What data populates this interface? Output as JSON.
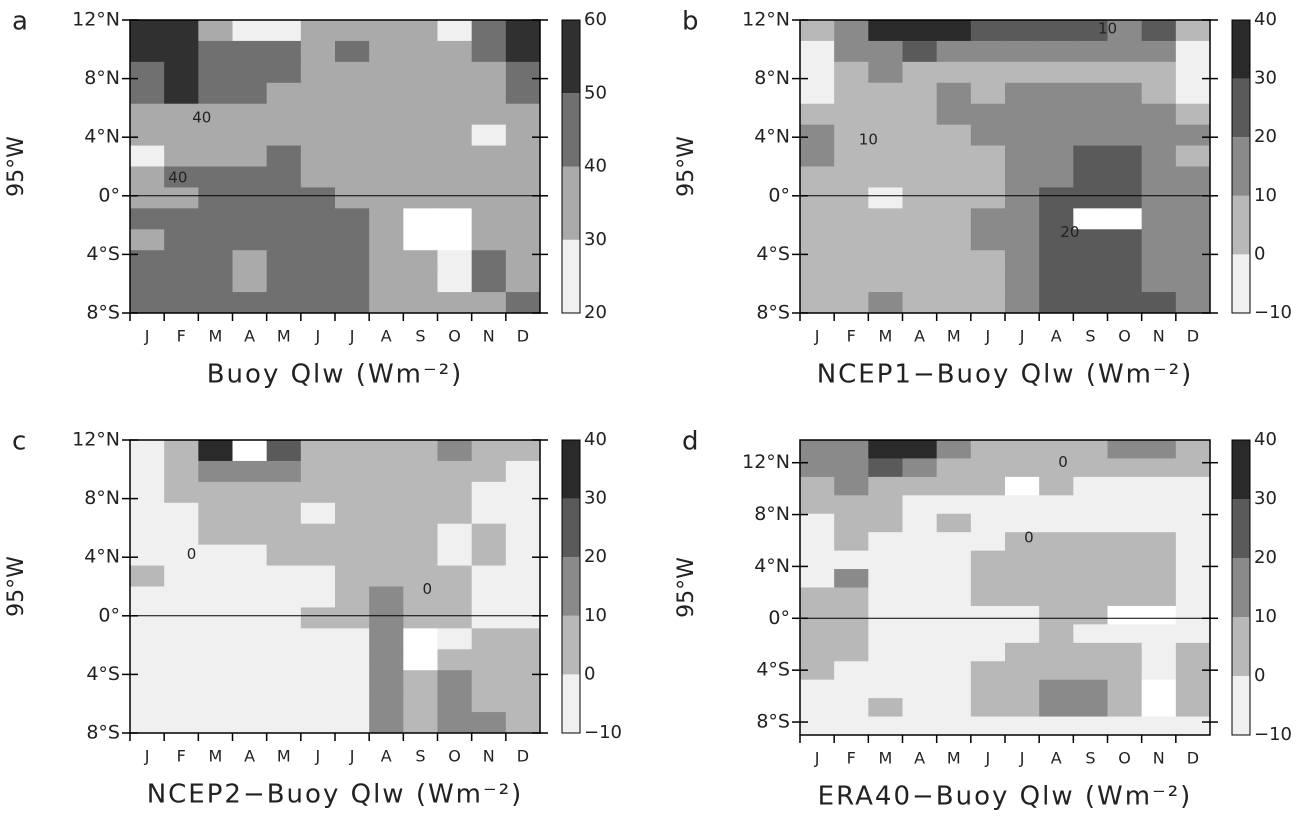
{
  "chart_data": [
    {
      "type": "heatmap",
      "panel_label": "a",
      "ylabel": "95°W",
      "xlabel": "Buoy Qlw (Wm⁻²)",
      "categories": [
        "J",
        "F",
        "M",
        "A",
        "M",
        "J",
        "J",
        "A",
        "S",
        "O",
        "N",
        "D"
      ],
      "ylim": [
        -8,
        12
      ],
      "yticks": [
        {
          "value": 12,
          "label": "12°N"
        },
        {
          "value": 8,
          "label": "8°N"
        },
        {
          "value": 4,
          "label": "4°N"
        },
        {
          "value": 0,
          "label": "0°"
        },
        {
          "value": -4,
          "label": "4°S"
        },
        {
          "value": -8,
          "label": "8°S"
        }
      ],
      "levels": [
        20,
        30,
        40,
        50,
        60
      ],
      "colors": [
        "#f0f0f0",
        "#aaaaaa",
        "#707070",
        "#303030"
      ],
      "below_color": "#ffffff",
      "rows": [
        [
          55,
          55,
          35,
          25,
          25,
          35,
          35,
          35,
          35,
          25,
          45,
          55
        ],
        [
          55,
          55,
          45,
          45,
          45,
          35,
          45,
          35,
          35,
          35,
          45,
          55
        ],
        [
          45,
          55,
          45,
          45,
          45,
          35,
          35,
          35,
          35,
          35,
          35,
          45
        ],
        [
          45,
          55,
          45,
          45,
          35,
          35,
          35,
          35,
          35,
          35,
          35,
          45
        ],
        [
          35,
          35,
          35,
          35,
          35,
          35,
          35,
          35,
          35,
          35,
          35,
          35
        ],
        [
          35,
          35,
          35,
          35,
          35,
          35,
          35,
          35,
          35,
          35,
          25,
          35
        ],
        [
          25,
          35,
          35,
          35,
          45,
          35,
          35,
          35,
          35,
          35,
          35,
          35
        ],
        [
          35,
          45,
          45,
          45,
          45,
          35,
          35,
          35,
          35,
          35,
          35,
          35
        ],
        [
          35,
          35,
          45,
          45,
          45,
          45,
          35,
          35,
          35,
          35,
          35,
          35
        ],
        [
          45,
          45,
          45,
          45,
          45,
          45,
          45,
          35,
          15,
          15,
          35,
          35
        ],
        [
          35,
          45,
          45,
          45,
          45,
          45,
          45,
          35,
          15,
          15,
          35,
          35
        ],
        [
          45,
          45,
          45,
          35,
          45,
          45,
          45,
          35,
          35,
          25,
          45,
          35
        ],
        [
          45,
          45,
          45,
          35,
          45,
          45,
          45,
          35,
          35,
          25,
          45,
          35
        ],
        [
          45,
          45,
          45,
          45,
          45,
          45,
          45,
          35,
          35,
          35,
          35,
          45
        ]
      ],
      "annotations": [
        {
          "text": "40",
          "x": 1.6,
          "y": 5.3
        },
        {
          "text": "40",
          "x": 0.9,
          "y": 1.2
        }
      ]
    },
    {
      "type": "heatmap",
      "panel_label": "b",
      "ylabel": "95°W",
      "xlabel": "NCEP1−Buoy Qlw (Wm⁻²)",
      "categories": [
        "J",
        "F",
        "M",
        "A",
        "M",
        "J",
        "J",
        "A",
        "S",
        "O",
        "N",
        "D"
      ],
      "ylim": [
        -8,
        12
      ],
      "yticks": [
        {
          "value": 12,
          "label": "12°N"
        },
        {
          "value": 8,
          "label": "8°N"
        },
        {
          "value": 4,
          "label": "4°N"
        },
        {
          "value": 0,
          "label": "0°"
        },
        {
          "value": -4,
          "label": "4°S"
        },
        {
          "value": -8,
          "label": "8°S"
        }
      ],
      "levels": [
        {
          "value": -10,
          "label": "−10"
        },
        0,
        10,
        20,
        30,
        40
      ],
      "colors": [
        "#f0f0f0",
        "#b8b8b8",
        "#8a8a8a",
        "#5a5a5a",
        "#2a2a2a"
      ],
      "below_color": "#ffffff",
      "rows": [
        [
          5,
          15,
          35,
          35,
          35,
          25,
          25,
          25,
          25,
          15,
          25,
          5
        ],
        [
          -5,
          15,
          15,
          25,
          15,
          15,
          15,
          15,
          15,
          15,
          15,
          -5
        ],
        [
          -5,
          5,
          15,
          5,
          5,
          5,
          5,
          5,
          5,
          5,
          5,
          -5
        ],
        [
          -5,
          5,
          5,
          5,
          15,
          5,
          15,
          15,
          15,
          15,
          5,
          -5
        ],
        [
          5,
          5,
          5,
          5,
          15,
          15,
          15,
          15,
          15,
          15,
          15,
          5
        ],
        [
          15,
          5,
          5,
          5,
          5,
          15,
          15,
          15,
          15,
          15,
          15,
          15
        ],
        [
          15,
          5,
          5,
          5,
          5,
          5,
          15,
          15,
          25,
          25,
          15,
          5
        ],
        [
          5,
          5,
          5,
          5,
          5,
          5,
          15,
          15,
          25,
          25,
          15,
          15
        ],
        [
          5,
          5,
          -5,
          5,
          5,
          5,
          15,
          25,
          25,
          25,
          15,
          15
        ],
        [
          5,
          5,
          5,
          5,
          5,
          15,
          15,
          25,
          -15,
          -15,
          15,
          15
        ],
        [
          5,
          5,
          5,
          5,
          5,
          15,
          15,
          25,
          25,
          25,
          15,
          15
        ],
        [
          5,
          5,
          5,
          5,
          5,
          5,
          15,
          25,
          25,
          25,
          15,
          15
        ],
        [
          5,
          5,
          5,
          5,
          5,
          5,
          15,
          25,
          25,
          25,
          15,
          15
        ],
        [
          5,
          5,
          15,
          5,
          5,
          5,
          15,
          25,
          25,
          25,
          25,
          15
        ]
      ],
      "annotations": [
        {
          "text": "10",
          "x": 8.5,
          "y": 11.4
        },
        {
          "text": "10",
          "x": 1.5,
          "y": 3.8
        },
        {
          "text": "20",
          "x": 7.4,
          "y": -2.5
        }
      ]
    },
    {
      "type": "heatmap",
      "panel_label": "c",
      "ylabel": "95°W",
      "xlabel": "NCEP2−Buoy Qlw (Wm⁻²)",
      "categories": [
        "J",
        "F",
        "M",
        "A",
        "M",
        "J",
        "J",
        "A",
        "S",
        "O",
        "N",
        "D"
      ],
      "ylim": [
        -8,
        12
      ],
      "yticks": [
        {
          "value": 12,
          "label": "12°N"
        },
        {
          "value": 8,
          "label": "8°N"
        },
        {
          "value": 4,
          "label": "4°N"
        },
        {
          "value": 0,
          "label": "0°"
        },
        {
          "value": -4,
          "label": "4°S"
        },
        {
          "value": -8,
          "label": "8°S"
        }
      ],
      "levels": [
        {
          "value": -10,
          "label": "−10"
        },
        0,
        10,
        20,
        30,
        40
      ],
      "colors": [
        "#f0f0f0",
        "#b8b8b8",
        "#8a8a8a",
        "#5a5a5a",
        "#2a2a2a"
      ],
      "below_color": "#ffffff",
      "rows": [
        [
          -5,
          5,
          35,
          -15,
          25,
          5,
          5,
          5,
          5,
          15,
          5,
          5
        ],
        [
          -5,
          5,
          15,
          15,
          15,
          5,
          5,
          5,
          5,
          5,
          5,
          -5
        ],
        [
          -5,
          5,
          5,
          5,
          5,
          5,
          5,
          5,
          5,
          5,
          -5,
          -5
        ],
        [
          -5,
          -5,
          5,
          5,
          5,
          -5,
          5,
          5,
          5,
          5,
          -5,
          -5
        ],
        [
          -5,
          -5,
          5,
          5,
          5,
          5,
          5,
          5,
          5,
          -5,
          5,
          -5
        ],
        [
          -5,
          -5,
          -5,
          -5,
          5,
          5,
          5,
          5,
          5,
          -5,
          5,
          -5
        ],
        [
          5,
          -5,
          -5,
          -5,
          -5,
          -5,
          5,
          5,
          5,
          5,
          -5,
          -5
        ],
        [
          -5,
          -5,
          -5,
          -5,
          -5,
          -5,
          5,
          15,
          5,
          5,
          -5,
          -5
        ],
        [
          -5,
          -5,
          -5,
          -5,
          -5,
          5,
          5,
          15,
          5,
          5,
          -5,
          -5
        ],
        [
          -5,
          -5,
          -5,
          -5,
          -5,
          -5,
          -5,
          15,
          -15,
          -5,
          5,
          5
        ],
        [
          -5,
          -5,
          -5,
          -5,
          -5,
          -5,
          -5,
          15,
          -15,
          5,
          5,
          5
        ],
        [
          -5,
          -5,
          -5,
          -5,
          -5,
          -5,
          -5,
          15,
          5,
          15,
          5,
          5
        ],
        [
          -5,
          -5,
          -5,
          -5,
          -5,
          -5,
          -5,
          15,
          5,
          15,
          5,
          5
        ],
        [
          -5,
          -5,
          -5,
          -5,
          -5,
          -5,
          -5,
          15,
          5,
          15,
          15,
          5
        ]
      ],
      "annotations": [
        {
          "text": "0",
          "x": 1.3,
          "y": 4.2
        },
        {
          "text": "0",
          "x": 8.2,
          "y": 1.8
        }
      ]
    },
    {
      "type": "heatmap",
      "panel_label": "d",
      "ylabel": "95°W",
      "xlabel": "ERA40−Buoy Qlw (Wm⁻²)",
      "categories": [
        "J",
        "F",
        "M",
        "A",
        "M",
        "J",
        "J",
        "A",
        "S",
        "O",
        "N",
        "D"
      ],
      "ylim": [
        -9,
        13.75
      ],
      "yticks": [
        {
          "value": 12,
          "label": "12°N"
        },
        {
          "value": 8,
          "label": "8°N"
        },
        {
          "value": 4,
          "label": "4°N"
        },
        {
          "value": 0,
          "label": "0°"
        },
        {
          "value": -4,
          "label": "4°S"
        },
        {
          "value": -8,
          "label": "8°S"
        }
      ],
      "levels": [
        {
          "value": -10,
          "label": "−10"
        },
        0,
        10,
        20,
        30,
        40
      ],
      "colors": [
        "#f0f0f0",
        "#b8b8b8",
        "#8a8a8a",
        "#5a5a5a",
        "#2a2a2a"
      ],
      "below_color": "#ffffff",
      "rows": [
        [
          15,
          15,
          35,
          35,
          15,
          5,
          5,
          5,
          5,
          15,
          15,
          5
        ],
        [
          15,
          15,
          25,
          15,
          5,
          5,
          5,
          5,
          5,
          5,
          5,
          5
        ],
        [
          5,
          15,
          5,
          5,
          5,
          5,
          -15,
          5,
          -5,
          -5,
          -5,
          -5
        ],
        [
          5,
          5,
          5,
          -5,
          -5,
          -5,
          -5,
          -5,
          -5,
          -5,
          -5,
          -5
        ],
        [
          -5,
          5,
          5,
          -5,
          5,
          -5,
          -5,
          -5,
          -5,
          -5,
          -5,
          -5
        ],
        [
          -5,
          5,
          -5,
          -5,
          -5,
          -5,
          5,
          5,
          5,
          5,
          5,
          -5
        ],
        [
          -5,
          -5,
          -5,
          -5,
          -5,
          5,
          5,
          5,
          5,
          5,
          5,
          -5
        ],
        [
          -5,
          15,
          -5,
          -5,
          -5,
          5,
          5,
          5,
          5,
          5,
          5,
          -5
        ],
        [
          5,
          5,
          -5,
          -5,
          -5,
          5,
          5,
          5,
          5,
          5,
          5,
          -5
        ],
        [
          5,
          5,
          -5,
          -5,
          -5,
          -5,
          -5,
          5,
          5,
          -15,
          -15,
          -5
        ],
        [
          5,
          5,
          -5,
          -5,
          -5,
          -5,
          -5,
          5,
          -5,
          -5,
          -5,
          -5
        ],
        [
          5,
          5,
          -5,
          -5,
          -5,
          -5,
          5,
          5,
          5,
          5,
          -5,
          5
        ],
        [
          5,
          -5,
          -5,
          -5,
          -5,
          5,
          5,
          5,
          5,
          5,
          -5,
          5
        ],
        [
          -5,
          -5,
          -5,
          -5,
          -5,
          5,
          5,
          15,
          15,
          5,
          -15,
          5
        ],
        [
          -5,
          -5,
          5,
          -5,
          -5,
          5,
          5,
          15,
          15,
          5,
          -15,
          5
        ],
        [
          -5,
          -5,
          -5,
          -5,
          -5,
          -5,
          -5,
          -5,
          -5,
          -5,
          -5,
          -5
        ]
      ],
      "annotations": [
        {
          "text": "0",
          "x": 7.2,
          "y": 12
        },
        {
          "text": "0",
          "x": 6.2,
          "y": 6.2
        }
      ]
    }
  ]
}
